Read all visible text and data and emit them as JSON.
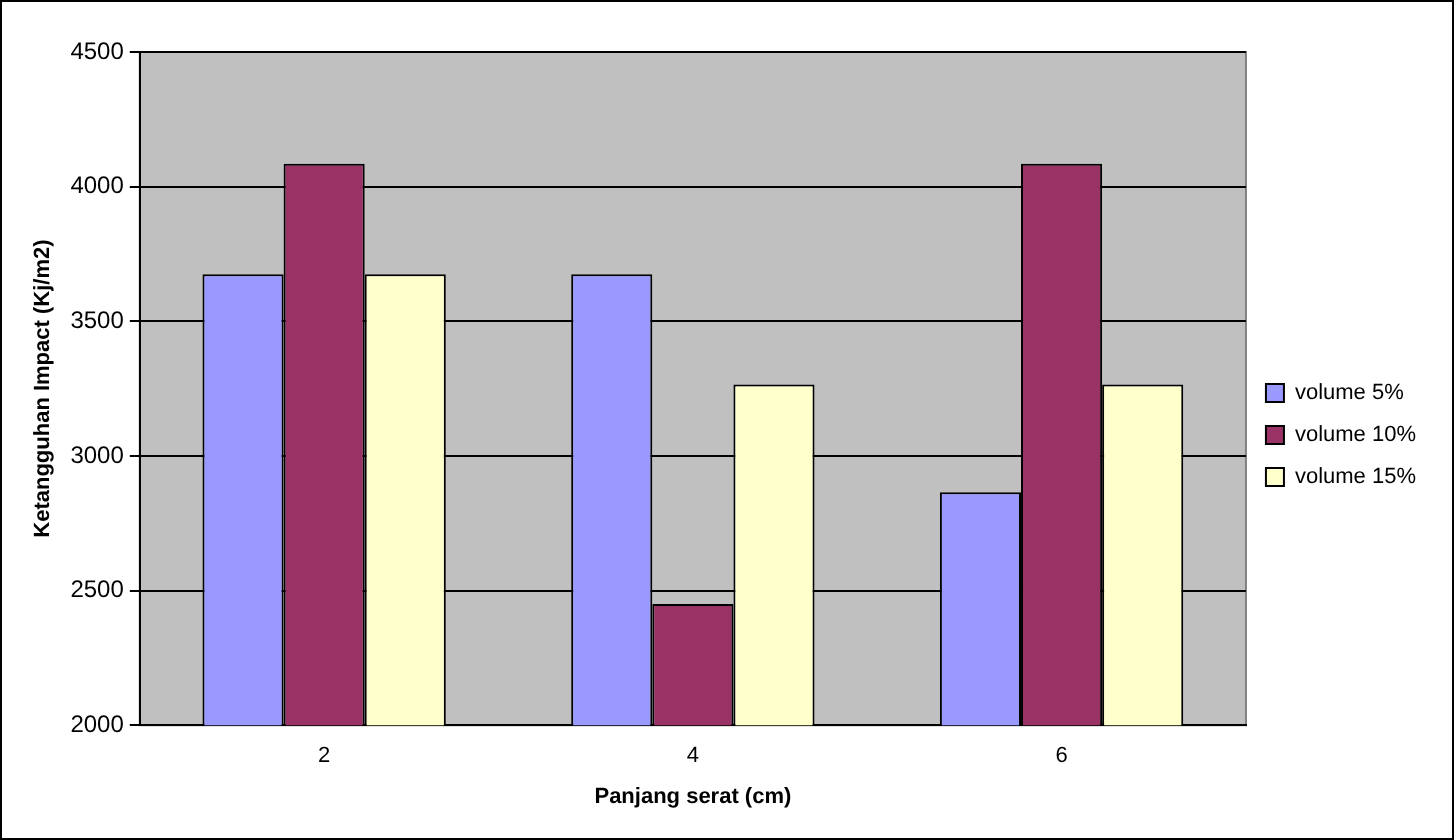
{
  "chart_data": {
    "type": "bar",
    "xlabel": "Panjang serat (cm)",
    "ylabel": "Ketangguhan Impact (Kj/m2)",
    "categories": [
      "2",
      "4",
      "6"
    ],
    "series": [
      {
        "name": "volume 5%",
        "color": "#9999ff",
        "values": [
          3675,
          3675,
          2865
        ]
      },
      {
        "name": "volume 10%",
        "color": "#993366",
        "values": [
          4085,
          2450,
          4085
        ]
      },
      {
        "name": "volume 15%",
        "color": "#ffffcc",
        "values": [
          3675,
          3265,
          3265
        ]
      }
    ],
    "ylim": [
      2000,
      4500
    ],
    "yticks": [
      2000,
      2500,
      3000,
      3500,
      4000,
      4500
    ],
    "grid": "y",
    "legend": "right"
  }
}
